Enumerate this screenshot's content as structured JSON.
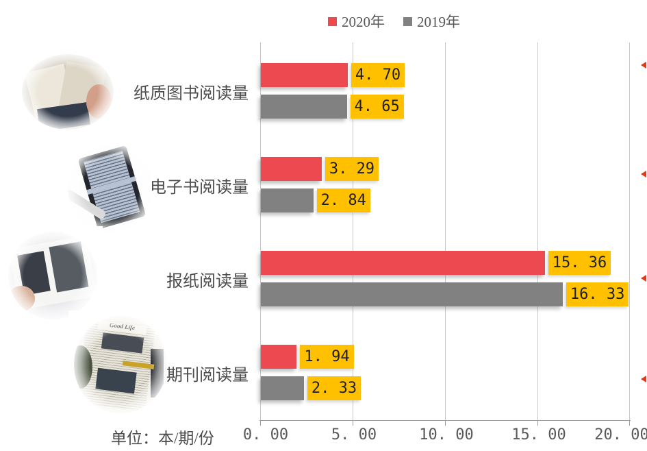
{
  "legend": {
    "items": [
      {
        "label": "2020年",
        "color": "#EC4A50"
      },
      {
        "label": "2019年",
        "color": "#818181"
      }
    ]
  },
  "axis": {
    "unit_label": "单位：本/期/份",
    "tick_labels": [
      "0. 00",
      "5. 00",
      "10. 00",
      "15. 00",
      "20. 00"
    ]
  },
  "chart_data": {
    "type": "bar",
    "orientation": "horizontal",
    "title": "",
    "categories": [
      "纸质图书阅读量",
      "电子书阅读量",
      "报纸阅读量",
      "期刊阅读量"
    ],
    "series": [
      {
        "name": "2020年",
        "color": "#EC4A50",
        "values": [
          4.7,
          3.29,
          15.36,
          1.94
        ],
        "display_labels": [
          "4. 70",
          "3. 29",
          "15. 36",
          "1. 94"
        ]
      },
      {
        "name": "2019年",
        "color": "#818181",
        "values": [
          4.65,
          2.84,
          16.33,
          2.33
        ],
        "display_labels": [
          "4. 65",
          "2. 84",
          "16. 33",
          "2. 33"
        ]
      }
    ],
    "xlabel": "单位：本/期/份",
    "xlim": [
      0,
      20
    ],
    "x_ticks": [
      0,
      5,
      10,
      15,
      20
    ],
    "grid": "vertical-gridlines",
    "legend_position": "top-center",
    "data_label_bg": "#FFC000",
    "data_label_color": "#1F1F1F"
  },
  "decorations": {
    "photos": [
      "paper-book-photo",
      "ebook-photo",
      "magazine-photo",
      "newspaper-photo"
    ],
    "newspaper_masthead": "Good Life",
    "edge_marker_color": "#E2391B"
  }
}
